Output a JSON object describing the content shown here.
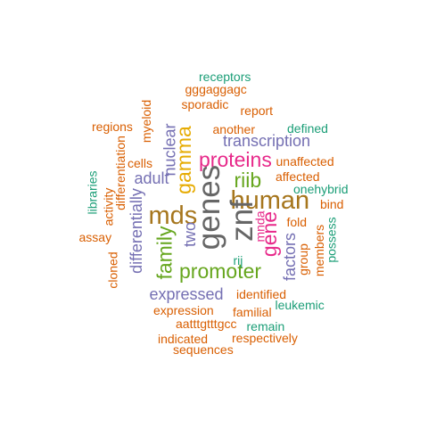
{
  "palette": {
    "teal": "#1b9e77",
    "orange": "#d95f02",
    "purple": "#7570b3",
    "magenta": "#e7298a",
    "green": "#66a61e",
    "gold": "#e6ab02",
    "brown": "#a6761d",
    "gray": "#666666"
  },
  "words": [
    {
      "text": "receptors",
      "color": "teal",
      "weight": 1,
      "vertical": false
    },
    {
      "text": "gggaggagc",
      "color": "orange",
      "weight": 1,
      "vertical": false
    },
    {
      "text": "sporadic",
      "color": "orange",
      "weight": 1,
      "vertical": false
    },
    {
      "text": "report",
      "color": "orange",
      "weight": 1,
      "vertical": false
    },
    {
      "text": "regions",
      "color": "orange",
      "weight": 1,
      "vertical": false
    },
    {
      "text": "myeloid",
      "color": "orange",
      "weight": 1,
      "vertical": true
    },
    {
      "text": "another",
      "color": "orange",
      "weight": 1,
      "vertical": false
    },
    {
      "text": "defined",
      "color": "teal",
      "weight": 1,
      "vertical": false
    },
    {
      "text": "nuclear",
      "color": "purple",
      "weight": 2,
      "vertical": true
    },
    {
      "text": "transcription",
      "color": "purple",
      "weight": 2,
      "vertical": false
    },
    {
      "text": "gamma",
      "color": "gold",
      "weight": 3,
      "vertical": true
    },
    {
      "text": "differentiation",
      "color": "orange",
      "weight": 1,
      "vertical": true
    },
    {
      "text": "cells",
      "color": "orange",
      "weight": 1,
      "vertical": false
    },
    {
      "text": "proteins",
      "color": "magenta",
      "weight": 3,
      "vertical": false
    },
    {
      "text": "unaffected",
      "color": "orange",
      "weight": 1,
      "vertical": false
    },
    {
      "text": "libraries",
      "color": "teal",
      "weight": 1,
      "vertical": true
    },
    {
      "text": "activity",
      "color": "orange",
      "weight": 1,
      "vertical": true
    },
    {
      "text": "adult",
      "color": "purple",
      "weight": 2,
      "vertical": false
    },
    {
      "text": "riib",
      "color": "green",
      "weight": 3,
      "vertical": false
    },
    {
      "text": "affected",
      "color": "orange",
      "weight": 1,
      "vertical": false
    },
    {
      "text": "onehybrid",
      "color": "teal",
      "weight": 1,
      "vertical": false
    },
    {
      "text": "differentially",
      "color": "purple",
      "weight": 2,
      "vertical": true
    },
    {
      "text": "genes",
      "color": "gray",
      "weight": 5,
      "vertical": true
    },
    {
      "text": "human",
      "color": "brown",
      "weight": 4,
      "vertical": false
    },
    {
      "text": "bind",
      "color": "orange",
      "weight": 1,
      "vertical": false
    },
    {
      "text": "mds",
      "color": "brown",
      "weight": 4,
      "vertical": false
    },
    {
      "text": "znf",
      "color": "gray",
      "weight": 5,
      "vertical": true
    },
    {
      "text": "mnda",
      "color": "magenta",
      "weight": 1,
      "vertical": true
    },
    {
      "text": "fold",
      "color": "orange",
      "weight": 1,
      "vertical": false
    },
    {
      "text": "assay",
      "color": "orange",
      "weight": 1,
      "vertical": false
    },
    {
      "text": "family",
      "color": "green",
      "weight": 3,
      "vertical": true
    },
    {
      "text": "two",
      "color": "purple",
      "weight": 2,
      "vertical": true
    },
    {
      "text": "gene",
      "color": "magenta",
      "weight": 3,
      "vertical": true
    },
    {
      "text": "factors",
      "color": "purple",
      "weight": 2,
      "vertical": true
    },
    {
      "text": "group",
      "color": "orange",
      "weight": 1,
      "vertical": true
    },
    {
      "text": "members",
      "color": "orange",
      "weight": 1,
      "vertical": true
    },
    {
      "text": "possess",
      "color": "teal",
      "weight": 1,
      "vertical": true
    },
    {
      "text": "cloned",
      "color": "orange",
      "weight": 1,
      "vertical": true
    },
    {
      "text": "promoter",
      "color": "green",
      "weight": 3,
      "vertical": false
    },
    {
      "text": "rij",
      "color": "teal",
      "weight": 1,
      "vertical": false
    },
    {
      "text": "expressed",
      "color": "purple",
      "weight": 2,
      "vertical": false
    },
    {
      "text": "identified",
      "color": "orange",
      "weight": 1,
      "vertical": false
    },
    {
      "text": "leukemic",
      "color": "teal",
      "weight": 1,
      "vertical": false
    },
    {
      "text": "expression",
      "color": "orange",
      "weight": 1,
      "vertical": false
    },
    {
      "text": "familial",
      "color": "orange",
      "weight": 1,
      "vertical": false
    },
    {
      "text": "aatttgtttgcc",
      "color": "orange",
      "weight": 1,
      "vertical": false
    },
    {
      "text": "remain",
      "color": "teal",
      "weight": 1,
      "vertical": false
    },
    {
      "text": "indicated",
      "color": "orange",
      "weight": 1,
      "vertical": false
    },
    {
      "text": "respectively",
      "color": "orange",
      "weight": 1,
      "vertical": false
    },
    {
      "text": "sequences",
      "color": "orange",
      "weight": 1,
      "vertical": false
    }
  ]
}
